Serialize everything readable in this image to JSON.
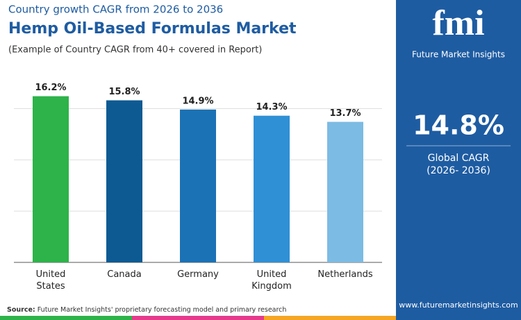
{
  "header": {
    "kicker": "Country growth CAGR from 2026 to 2036",
    "title": "Hemp Oil-Based Formulas Market",
    "subtitle": "(Example of Country CAGR from 40+ covered in Report)"
  },
  "chart_data": {
    "type": "bar",
    "categories": [
      "United States",
      "Canada",
      "Germany",
      "United Kingdom",
      "Netherlands"
    ],
    "values": [
      16.2,
      15.8,
      14.9,
      14.3,
      13.7
    ],
    "value_labels": [
      "16.2%",
      "15.8%",
      "14.9%",
      "14.3%",
      "13.7%"
    ],
    "colors": [
      "#2db34a",
      "#0d5a93",
      "#1b72b5",
      "#2f90d6",
      "#7cbbe3"
    ],
    "ylim": [
      0,
      18
    ],
    "yticks": [
      0,
      5,
      10,
      15
    ],
    "grid": true
  },
  "panel": {
    "logo": "fmi",
    "brand": "Future Market Insights",
    "value": "14.8%",
    "label": "Global CAGR",
    "period": "(2026- 2036)",
    "website": "www.futuremarketinsights.com"
  },
  "footer": {
    "source_label": "Source:",
    "source_text": "Future Market Insights' proprietary forecasting model and primary research"
  }
}
